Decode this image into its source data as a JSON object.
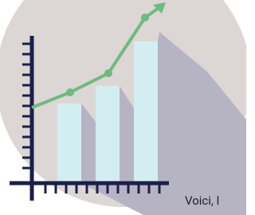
{
  "caption": {
    "text": "Voici, l"
  }
}
